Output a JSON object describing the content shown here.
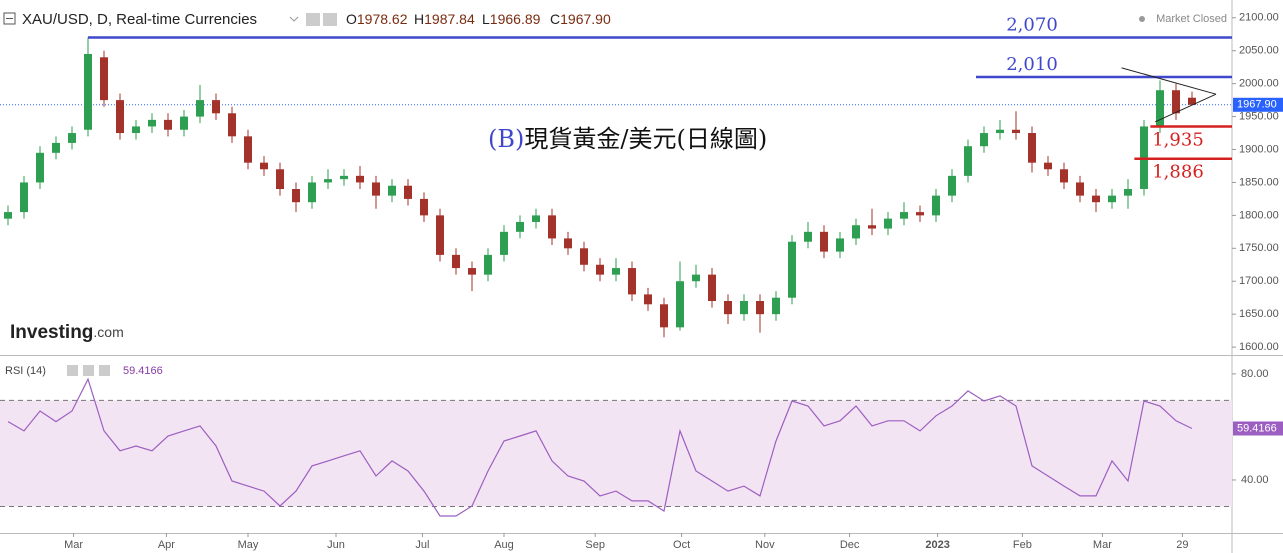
{
  "chart_data": {
    "type": "candlestick",
    "header": {
      "symbol": "XAU/USD, D, Real-time Currencies",
      "ohlc": [
        {
          "key": "O",
          "value": 1978.62,
          "label": "1978.62"
        },
        {
          "key": "H",
          "value": 1987.84,
          "label": "1987.84"
        },
        {
          "key": "L",
          "value": 1966.89,
          "label": "1966.89"
        },
        {
          "key": "C",
          "value": 1967.9,
          "label": "1967.90"
        }
      ],
      "status": "Market Closed"
    },
    "logo": {
      "name": "Investing",
      "suffix": ".com"
    },
    "title_prefix": "(B)",
    "title": "現貨黃金/美元(日線圖)",
    "up_color": "#2e9e52",
    "down_color": "#a3322b",
    "open": [
      1795,
      1805,
      1850,
      1895,
      1910,
      1930,
      2040,
      1975,
      1925,
      1935,
      1945,
      1930,
      1950,
      1975,
      1955,
      1920,
      1880,
      1870,
      1840,
      1820,
      1850,
      1855,
      1860,
      1850,
      1830,
      1845,
      1825,
      1800,
      1740,
      1720,
      1710,
      1740,
      1775,
      1790,
      1800,
      1765,
      1750,
      1725,
      1710,
      1720,
      1680,
      1665,
      1630,
      1700,
      1710,
      1670,
      1650,
      1670,
      1650,
      1675,
      1760,
      1775,
      1745,
      1765,
      1785,
      1780,
      1795,
      1805,
      1800,
      1830,
      1860,
      1905,
      1925,
      1930,
      1925,
      1880,
      1870,
      1850,
      1830,
      1820,
      1830,
      1840,
      1935,
      1990,
      1978.62
    ],
    "high": [
      1815,
      1860,
      1905,
      1920,
      1935,
      2070,
      2050,
      1985,
      1945,
      1955,
      1955,
      1960,
      1998,
      1985,
      1965,
      1930,
      1890,
      1880,
      1850,
      1860,
      1870,
      1870,
      1875,
      1860,
      1855,
      1855,
      1835,
      1810,
      1750,
      1730,
      1750,
      1785,
      1800,
      1810,
      1810,
      1775,
      1760,
      1735,
      1735,
      1730,
      1690,
      1675,
      1730,
      1725,
      1720,
      1680,
      1680,
      1680,
      1685,
      1770,
      1790,
      1785,
      1775,
      1795,
      1810,
      1805,
      1820,
      1815,
      1840,
      1870,
      1915,
      1935,
      1945,
      1958,
      1935,
      1890,
      1880,
      1860,
      1840,
      1840,
      1855,
      1945,
      2005,
      2000,
      1987.84
    ],
    "low": [
      1785,
      1795,
      1840,
      1885,
      1900,
      1920,
      1965,
      1915,
      1915,
      1925,
      1920,
      1920,
      1940,
      1945,
      1910,
      1870,
      1860,
      1830,
      1805,
      1810,
      1840,
      1845,
      1840,
      1810,
      1820,
      1815,
      1790,
      1730,
      1710,
      1685,
      1700,
      1730,
      1765,
      1780,
      1755,
      1740,
      1715,
      1700,
      1700,
      1670,
      1655,
      1615,
      1625,
      1690,
      1660,
      1635,
      1640,
      1622,
      1640,
      1665,
      1750,
      1735,
      1735,
      1755,
      1770,
      1770,
      1785,
      1790,
      1790,
      1820,
      1850,
      1895,
      1915,
      1915,
      1865,
      1860,
      1840,
      1820,
      1805,
      1810,
      1810,
      1830,
      1925,
      1945,
      1966.89
    ],
    "close": [
      1805,
      1850,
      1895,
      1910,
      1925,
      2045,
      1975,
      1925,
      1935,
      1945,
      1930,
      1950,
      1975,
      1955,
      1920,
      1880,
      1870,
      1840,
      1820,
      1850,
      1855,
      1860,
      1850,
      1830,
      1845,
      1825,
      1800,
      1740,
      1720,
      1710,
      1740,
      1775,
      1790,
      1800,
      1765,
      1750,
      1725,
      1710,
      1720,
      1680,
      1665,
      1630,
      1700,
      1710,
      1670,
      1650,
      1670,
      1650,
      1675,
      1760,
      1775,
      1745,
      1765,
      1785,
      1780,
      1795,
      1805,
      1800,
      1830,
      1860,
      1905,
      1925,
      1930,
      1925,
      1880,
      1870,
      1850,
      1830,
      1820,
      1830,
      1840,
      1935,
      1990,
      1955,
      1967.9
    ],
    "xlim": [
      -0.5,
      76.5
    ],
    "xticks": [
      {
        "value": 4.1,
        "label": "Mar"
      },
      {
        "value": 9.9,
        "label": "Apr"
      },
      {
        "value": 15,
        "label": "May"
      },
      {
        "value": 20.5,
        "label": "Jun"
      },
      {
        "value": 25.9,
        "label": "Jul"
      },
      {
        "value": 31,
        "label": "Aug"
      },
      {
        "value": 36.7,
        "label": "Sep"
      },
      {
        "value": 42.1,
        "label": "Oct"
      },
      {
        "value": 47.3,
        "label": "Nov"
      },
      {
        "value": 52.6,
        "label": "Dec"
      },
      {
        "value": 58.1,
        "label": "2023"
      },
      {
        "value": 63.4,
        "label": "Feb"
      },
      {
        "value": 68.4,
        "label": "Mar"
      },
      {
        "value": 73.4,
        "label": "29"
      }
    ],
    "ylim": [
      1588,
      2127
    ],
    "yticks": [
      {
        "value": 1600,
        "label": "1600.00"
      },
      {
        "value": 1650,
        "label": "1650.00"
      },
      {
        "value": 1700,
        "label": "1700.00"
      },
      {
        "value": 1750,
        "label": "1750.00"
      },
      {
        "value": 1800,
        "label": "1800.00"
      },
      {
        "value": 1850,
        "label": "1850.00"
      },
      {
        "value": 1900,
        "label": "1900.00"
      },
      {
        "value": 1950,
        "label": "1950.00"
      },
      {
        "value": 2000,
        "label": "2000.00"
      },
      {
        "value": 2050,
        "label": "2050.00"
      },
      {
        "value": 2100,
        "label": "2100.00"
      }
    ],
    "last_price": {
      "value": 1967.9,
      "label": "1967.90",
      "color": "#2962ff"
    },
    "levels": [
      {
        "label": "2,070",
        "value": 2070,
        "x_start": 5,
        "color": "#3f48cc"
      },
      {
        "label": "2,010",
        "value": 2010,
        "x_start": 60.5,
        "color": "#3f48cc"
      },
      {
        "label": "1,935",
        "value": 1935,
        "x_start": 71.4,
        "color": "#d62020"
      },
      {
        "label": "1,886",
        "value": 1886,
        "x_start": 70.4,
        "color": "#d62020"
      }
    ],
    "trendlines": [
      {
        "x": [
          69.6,
          75.5
        ],
        "y": [
          2024,
          1984
        ]
      },
      {
        "x": [
          71.7,
          75.5
        ],
        "y": [
          1942,
          1984
        ]
      }
    ],
    "rsi": {
      "name": "RSI (14)",
      "color": "#9c5fc1",
      "value_label": "59.4166",
      "values": [
        62,
        58.5,
        66,
        62,
        66,
        78,
        58.5,
        51,
        52.8,
        51,
        56.6,
        58.5,
        60.4,
        52.8,
        39.6,
        37.7,
        35.8,
        30.2,
        35.8,
        45.3,
        47.2,
        49.1,
        51,
        41.5,
        47.2,
        43.4,
        35.8,
        26.4,
        26.4,
        30.2,
        43.4,
        54.7,
        56.6,
        58.5,
        47.2,
        41.5,
        39.6,
        34,
        35.8,
        32.1,
        32.1,
        28.3,
        58.5,
        43.4,
        39.6,
        35.8,
        37.7,
        34,
        54.7,
        69.8,
        67.9,
        60.4,
        62.3,
        67.9,
        60.4,
        62.3,
        62.3,
        58.5,
        64.2,
        67.9,
        73.6,
        69.8,
        71.7,
        67.9,
        45.3,
        41.5,
        37.7,
        34,
        34,
        47.2,
        39.6,
        69.8,
        67.9,
        62.3,
        59.4166
      ],
      "ylim": [
        20,
        86
      ],
      "yticks": [
        {
          "value": 40,
          "label": "40.00"
        },
        {
          "value": 80,
          "label": "80.00"
        }
      ],
      "bands": [
        30,
        70
      ]
    }
  }
}
